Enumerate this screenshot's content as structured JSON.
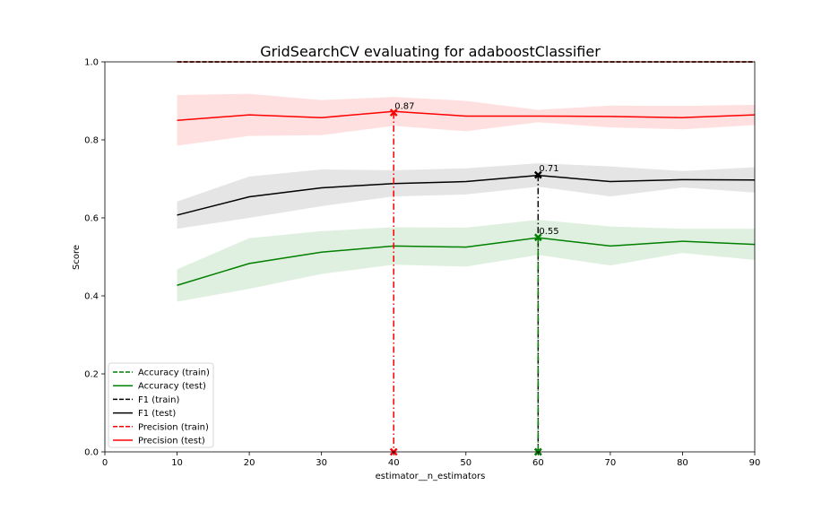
{
  "chart_data": {
    "type": "line",
    "title": "GridSearchCV evaluating for adaboostClassifier",
    "xlabel": "estimator__n_estimators",
    "ylabel": "Score",
    "xlim": [
      0,
      90
    ],
    "ylim": [
      0,
      1.0
    ],
    "xticks": [
      0,
      10,
      20,
      30,
      40,
      50,
      60,
      70,
      80,
      90
    ],
    "yticks": [
      0.0,
      0.2,
      0.4,
      0.6,
      0.8,
      1.0
    ],
    "xtick_labels": [
      "0",
      "10",
      "20",
      "30",
      "40",
      "50",
      "60",
      "70",
      "80",
      "90"
    ],
    "ytick_labels": [
      "0.0",
      "0.2",
      "0.4",
      "0.6",
      "0.8",
      "1.0"
    ],
    "grid": false,
    "legend_position": "lower-left",
    "x": [
      10,
      20,
      30,
      40,
      50,
      60,
      70,
      80,
      90
    ],
    "series": [
      {
        "name": "Accuracy (train)",
        "color": "#008000",
        "style": "dashed",
        "values": [
          1.0,
          1.0,
          1.0,
          1.0,
          1.0,
          1.0,
          1.0,
          1.0,
          1.0
        ]
      },
      {
        "name": "Accuracy (test)",
        "color": "#008000",
        "style": "solid",
        "values": [
          0.427,
          0.483,
          0.512,
          0.528,
          0.525,
          0.549,
          0.528,
          0.54,
          0.532
        ],
        "band_lower": [
          0.385,
          0.418,
          0.456,
          0.48,
          0.475,
          0.505,
          0.478,
          0.51,
          0.492
        ],
        "band_upper": [
          0.468,
          0.548,
          0.566,
          0.576,
          0.575,
          0.595,
          0.578,
          0.572,
          0.572
        ]
      },
      {
        "name": "F1 (train)",
        "color": "#000000",
        "style": "dashed",
        "values": [
          1.0,
          1.0,
          1.0,
          1.0,
          1.0,
          1.0,
          1.0,
          1.0,
          1.0
        ]
      },
      {
        "name": "F1 (test)",
        "color": "#000000",
        "style": "solid",
        "values": [
          0.607,
          0.654,
          0.677,
          0.688,
          0.693,
          0.709,
          0.693,
          0.698,
          0.697
        ],
        "band_lower": [
          0.572,
          0.6,
          0.63,
          0.655,
          0.66,
          0.68,
          0.655,
          0.678,
          0.665
        ],
        "band_upper": [
          0.642,
          0.706,
          0.724,
          0.722,
          0.727,
          0.74,
          0.732,
          0.72,
          0.73
        ]
      },
      {
        "name": "Precision (train)",
        "color": "#ff0000",
        "style": "dashed",
        "values": [
          1.0,
          1.0,
          1.0,
          1.0,
          1.0,
          1.0,
          1.0,
          1.0,
          1.0
        ]
      },
      {
        "name": "Precision (test)",
        "color": "#ff0000",
        "style": "solid",
        "values": [
          0.85,
          0.864,
          0.857,
          0.873,
          0.861,
          0.861,
          0.86,
          0.857,
          0.864
        ],
        "band_lower": [
          0.785,
          0.81,
          0.812,
          0.836,
          0.822,
          0.845,
          0.832,
          0.827,
          0.838
        ],
        "band_upper": [
          0.915,
          0.918,
          0.902,
          0.91,
          0.9,
          0.877,
          0.888,
          0.887,
          0.89
        ]
      }
    ],
    "best_markers": [
      {
        "series": "Precision (test)",
        "x": 40,
        "y": 0.87,
        "label": "0.87",
        "color": "#ff0000"
      },
      {
        "series": "F1 (test)",
        "x": 60,
        "y": 0.71,
        "label": "0.71",
        "color": "#000000"
      },
      {
        "series": "Accuracy (test)",
        "x": 60,
        "y": 0.55,
        "label": "0.55",
        "color": "#008000"
      }
    ]
  }
}
